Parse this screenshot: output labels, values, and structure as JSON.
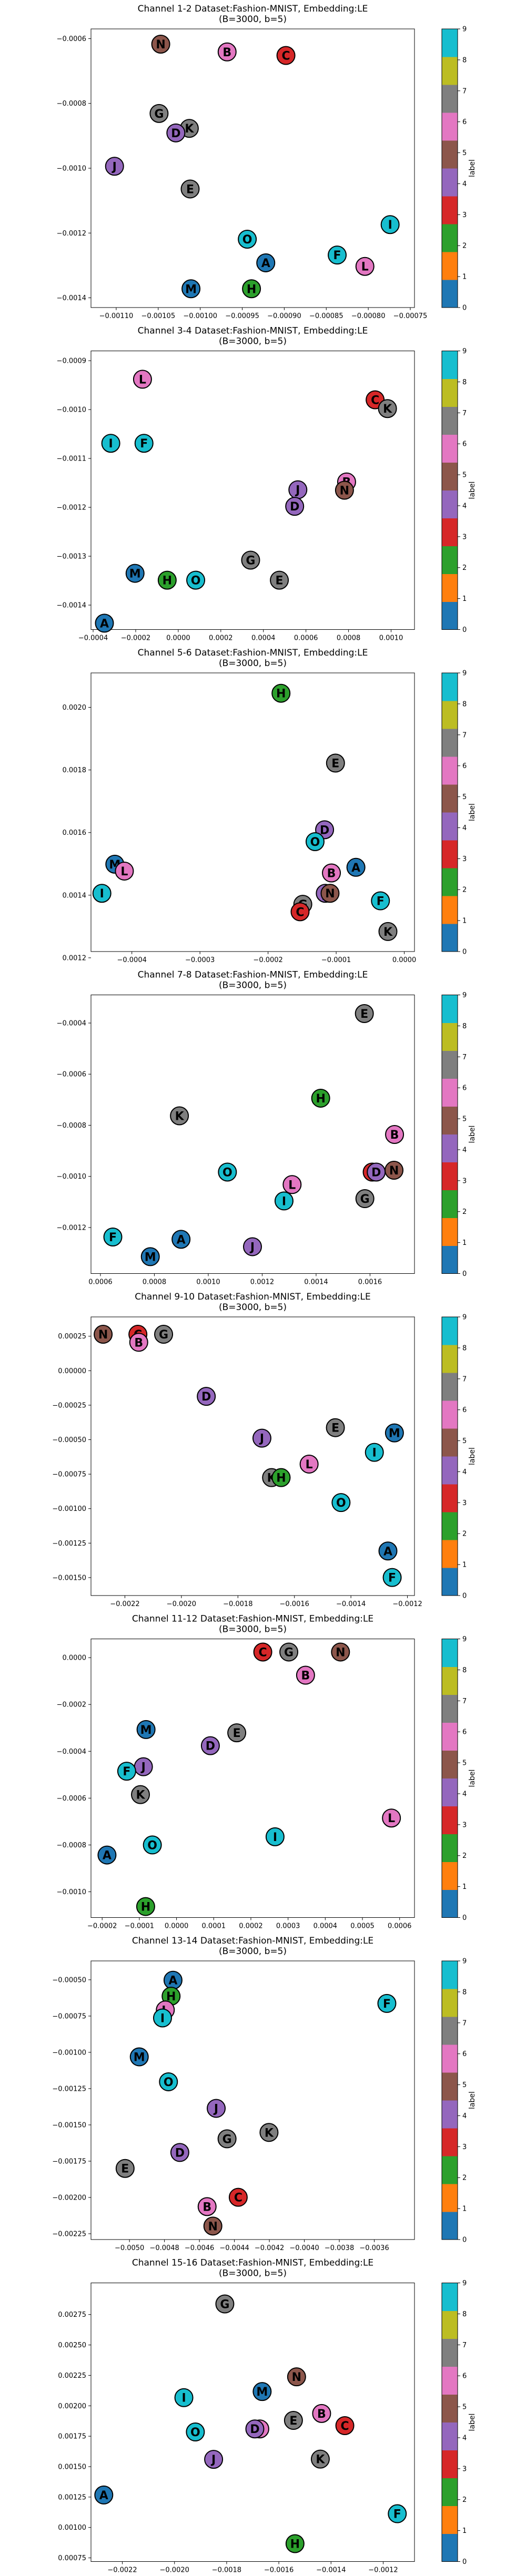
{
  "colorbar": {
    "label": "label",
    "ticks": [
      "0",
      "1",
      "2",
      "3",
      "4",
      "5",
      "6",
      "7",
      "8",
      "9"
    ],
    "colors": [
      "#1f77b4",
      "#ff7f0e",
      "#2ca02c",
      "#d62728",
      "#9467bd",
      "#8c564b",
      "#e377c2",
      "#7f7f7f",
      "#bcbd22",
      "#17becf"
    ]
  },
  "letter_colors": {
    "A": "#1f77b4",
    "M": "#1f77b4",
    "F": "#17becf",
    "I": "#17becf",
    "O": "#17becf",
    "H": "#2ca02c",
    "C": "#d62728",
    "D": "#9467bd",
    "J": "#9467bd",
    "N": "#8c564b",
    "B": "#e377c2",
    "L": "#e377c2",
    "E": "#7f7f7f",
    "G": "#7f7f7f",
    "K": "#7f7f7f"
  },
  "chart_data": [
    {
      "type": "scatter",
      "title": [
        "Channel 1-2 Dataset:Fashion-MNIST, Embedding:LE",
        "(B=3000, b=5)"
      ],
      "xlim": [
        -0.00113,
        -0.000745
      ],
      "ylim": [
        -0.00143,
        -0.00057
      ],
      "xticks": [
        -0.0011,
        -0.00105,
        -0.001,
        -0.00095,
        -0.0009,
        -0.00085,
        -0.0008,
        -0.00075
      ],
      "xtick_labels": [
        "−0.00110",
        "−0.00105",
        "−0.00100",
        "−0.00095",
        "−0.00090",
        "−0.00085",
        "−0.00080",
        "−0.00075"
      ],
      "yticks": [
        -0.0014,
        -0.0012,
        -0.001,
        -0.0008,
        -0.0006
      ],
      "ytick_labels": [
        "−0.0014",
        "−0.0012",
        "−0.0010",
        "−0.0008",
        "−0.0006"
      ],
      "points": [
        {
          "label": "N",
          "x": -0.001047,
          "y": -0.000617
        },
        {
          "label": "B",
          "x": -0.000968,
          "y": -0.000641
        },
        {
          "label": "C",
          "x": -0.000898,
          "y": -0.000652
        },
        {
          "label": "G",
          "x": -0.001049,
          "y": -0.000831
        },
        {
          "label": "K",
          "x": -0.001013,
          "y": -0.000877
        },
        {
          "label": "D",
          "x": -0.001029,
          "y": -0.000891
        },
        {
          "label": "J",
          "x": -0.001102,
          "y": -0.000994
        },
        {
          "label": "E",
          "x": -0.001012,
          "y": -0.001064
        },
        {
          "label": "I",
          "x": -0.000774,
          "y": -0.001174
        },
        {
          "label": "O",
          "x": -0.000944,
          "y": -0.001219
        },
        {
          "label": "F",
          "x": -0.000837,
          "y": -0.001268
        },
        {
          "label": "A",
          "x": -0.000922,
          "y": -0.001292
        },
        {
          "label": "L",
          "x": -0.000804,
          "y": -0.001303
        },
        {
          "label": "M",
          "x": -0.001011,
          "y": -0.001372
        },
        {
          "label": "H",
          "x": -0.000939,
          "y": -0.001372
        }
      ]
    },
    {
      "type": "scatter",
      "title": [
        "Channel 3-4 Dataset:Fashion-MNIST, Embedding:LE",
        "(B=3000, b=5)"
      ],
      "xlim": [
        -0.00041,
        0.00111
      ],
      "ylim": [
        -0.00145,
        -0.00088
      ],
      "xticks": [
        -0.0004,
        -0.0002,
        0,
        0.0002,
        0.0004,
        0.0006,
        0.0008,
        0.001
      ],
      "xtick_labels": [
        "−0.0004",
        "−0.0002",
        "0.0000",
        "0.0002",
        "0.0004",
        "0.0006",
        "0.0008",
        "0.0010"
      ],
      "yticks": [
        -0.0014,
        -0.0013,
        -0.0012,
        -0.0011,
        -0.001,
        -0.0009
      ],
      "ytick_labels": [
        "−0.0014",
        "−0.0013",
        "−0.0012",
        "−0.0011",
        "−0.0010",
        "−0.0009"
      ],
      "points": [
        {
          "label": "L",
          "x": -0.000168,
          "y": -0.000938
        },
        {
          "label": "C",
          "x": 0.000925,
          "y": -0.00098
        },
        {
          "label": "K",
          "x": 0.000983,
          "y": -0.000998
        },
        {
          "label": "I",
          "x": -0.000317,
          "y": -0.001069
        },
        {
          "label": "F",
          "x": -0.000161,
          "y": -0.001069
        },
        {
          "label": "B",
          "x": 0.000791,
          "y": -0.001148
        },
        {
          "label": "J",
          "x": 0.000562,
          "y": -0.001164
        },
        {
          "label": "N",
          "x": 0.000781,
          "y": -0.001165
        },
        {
          "label": "D",
          "x": 0.000547,
          "y": -0.001198
        },
        {
          "label": "G",
          "x": 0.00034,
          "y": -0.001308
        },
        {
          "label": "M",
          "x": -0.000203,
          "y": -0.001335
        },
        {
          "label": "H",
          "x": -5.2e-05,
          "y": -0.001349
        },
        {
          "label": "O",
          "x": 8.2e-05,
          "y": -0.001349
        },
        {
          "label": "E",
          "x": 0.000475,
          "y": -0.001349
        },
        {
          "label": "A",
          "x": -0.000347,
          "y": -0.001437
        }
      ]
    },
    {
      "type": "scatter",
      "title": [
        "Channel 5-6 Dataset:Fashion-MNIST, Embedding:LE",
        "(B=3000, b=5)"
      ],
      "xlim": [
        -0.00046,
        1.5e-05
      ],
      "ylim": [
        0.00122,
        0.00211
      ],
      "xticks": [
        -0.0004,
        -0.0003,
        -0.0002,
        -0.0001,
        0
      ],
      "xtick_labels": [
        "−0.0004",
        "−0.0003",
        "−0.0002",
        "−0.0001",
        "0.0000"
      ],
      "yticks": [
        0.0012,
        0.0014,
        0.0016,
        0.0018,
        0.002
      ],
      "ytick_labels": [
        "0.0012",
        "0.0014",
        "0.0016",
        "0.0018",
        "0.0020"
      ],
      "points": [
        {
          "label": "H",
          "x": -0.000181,
          "y": 0.002045
        },
        {
          "label": "E",
          "x": -0.000101,
          "y": 0.001822
        },
        {
          "label": "D",
          "x": -0.000117,
          "y": 0.001609
        },
        {
          "label": "O",
          "x": -0.000131,
          "y": 0.001571
        },
        {
          "label": "M",
          "x": -0.000425,
          "y": 0.001499
        },
        {
          "label": "L",
          "x": -0.000411,
          "y": 0.001477
        },
        {
          "label": "A",
          "x": -7.1e-05,
          "y": 0.001489
        },
        {
          "label": "B",
          "x": -0.000107,
          "y": 0.001471
        },
        {
          "label": "I",
          "x": -0.000444,
          "y": 0.001406
        },
        {
          "label": "J",
          "x": -0.000116,
          "y": 0.001406
        },
        {
          "label": "N",
          "x": -0.000109,
          "y": 0.001406
        },
        {
          "label": "F",
          "x": -3.5e-05,
          "y": 0.001382
        },
        {
          "label": "G",
          "x": -0.000149,
          "y": 0.001371
        },
        {
          "label": "C",
          "x": -0.000153,
          "y": 0.001347
        },
        {
          "label": "K",
          "x": -2.4e-05,
          "y": 0.001284
        }
      ]
    },
    {
      "type": "scatter",
      "title": [
        "Channel 7-8 Dataset:Fashion-MNIST, Embedding:LE",
        "(B=3000, b=5)"
      ],
      "xlim": [
        0.000565,
        0.001765
      ],
      "ylim": [
        -0.00138,
        -0.00029
      ],
      "xticks": [
        0.0006,
        0.0008,
        0.001,
        0.0012,
        0.0014,
        0.0016
      ],
      "xtick_labels": [
        "0.0006",
        "0.0008",
        "0.0010",
        "0.0012",
        "0.0014",
        "0.0016"
      ],
      "yticks": [
        -0.0012,
        -0.001,
        -0.0008,
        -0.0006,
        -0.0004
      ],
      "ytick_labels": [
        "−0.0012",
        "−0.0010",
        "−0.0008",
        "−0.0006",
        "−0.0004"
      ],
      "points": [
        {
          "label": "E",
          "x": 0.001579,
          "y": -0.000363
        },
        {
          "label": "H",
          "x": 0.001417,
          "y": -0.000694
        },
        {
          "label": "K",
          "x": 0.000893,
          "y": -0.000763
        },
        {
          "label": "B",
          "x": 0.001691,
          "y": -0.000836
        },
        {
          "label": "O",
          "x": 0.001071,
          "y": -0.000983
        },
        {
          "label": "C",
          "x": 0.001608,
          "y": -0.000983
        },
        {
          "label": "D",
          "x": 0.001623,
          "y": -0.000983
        },
        {
          "label": "N",
          "x": 0.001689,
          "y": -0.000976
        },
        {
          "label": "L",
          "x": 0.001311,
          "y": -0.001032
        },
        {
          "label": "I",
          "x": 0.001281,
          "y": -0.001096
        },
        {
          "label": "G",
          "x": 0.001581,
          "y": -0.001087
        },
        {
          "label": "F",
          "x": 0.000646,
          "y": -0.001237
        },
        {
          "label": "A",
          "x": 0.000899,
          "y": -0.001246
        },
        {
          "label": "J",
          "x": 0.001164,
          "y": -0.001275
        },
        {
          "label": "M",
          "x": 0.000785,
          "y": -0.001314
        }
      ]
    },
    {
      "type": "scatter",
      "title": [
        "Channel 9-10 Dataset:Fashion-MNIST, Embedding:LE",
        "(B=3000, b=5)"
      ],
      "xlim": [
        -0.00232,
        -0.001175
      ],
      "ylim": [
        -0.00163,
        0.00039
      ],
      "xticks": [
        -0.0022,
        -0.002,
        -0.0018,
        -0.0016,
        -0.0014,
        -0.0012
      ],
      "xtick_labels": [
        "−0.0022",
        "−0.0020",
        "−0.0018",
        "−0.0016",
        "−0.0014",
        "−0.0012"
      ],
      "yticks": [
        -0.0015,
        -0.00125,
        -0.001,
        -0.00075,
        -0.0005,
        -0.00025,
        0,
        0.00025
      ],
      "ytick_labels": [
        "−0.00150",
        "−0.00125",
        "−0.00100",
        "−0.00075",
        "−0.00050",
        "−0.00025",
        "0.00000",
        "0.00025"
      ],
      "points": [
        {
          "label": "N",
          "x": -0.002277,
          "y": 0.000264
        },
        {
          "label": "C",
          "x": -0.002154,
          "y": 0.000264
        },
        {
          "label": "B",
          "x": -0.002151,
          "y": 0.000206
        },
        {
          "label": "G",
          "x": -0.002063,
          "y": 0.000264
        },
        {
          "label": "D",
          "x": -0.001912,
          "y": -0.000186
        },
        {
          "label": "E",
          "x": -0.001455,
          "y": -0.000413
        },
        {
          "label": "M",
          "x": -0.001246,
          "y": -0.000451
        },
        {
          "label": "J",
          "x": -0.001715,
          "y": -0.000489
        },
        {
          "label": "I",
          "x": -0.001317,
          "y": -0.000592
        },
        {
          "label": "L",
          "x": -0.001548,
          "y": -0.000677
        },
        {
          "label": "K",
          "x": -0.001681,
          "y": -0.000775
        },
        {
          "label": "H",
          "x": -0.001647,
          "y": -0.000775
        },
        {
          "label": "O",
          "x": -0.001435,
          "y": -0.000956
        },
        {
          "label": "A",
          "x": -0.001269,
          "y": -0.001307
        },
        {
          "label": "F",
          "x": -0.001254,
          "y": -0.001499
        }
      ]
    },
    {
      "type": "scatter",
      "title": [
        "Channel 11-12 Dataset:Fashion-MNIST, Embedding:LE",
        "(B=3000, b=5)"
      ],
      "xlim": [
        -0.00023,
        0.00064
      ],
      "ylim": [
        -0.00111,
        8e-05
      ],
      "xticks": [
        -0.0002,
        -0.0001,
        0,
        0.0001,
        0.0002,
        0.0003,
        0.0004,
        0.0005,
        0.0006
      ],
      "xtick_labels": [
        "−0.0002",
        "−0.0001",
        "0.0000",
        "0.0001",
        "0.0002",
        "0.0003",
        "0.0004",
        "0.0005",
        "0.0006"
      ],
      "yticks": [
        -0.001,
        -0.0008,
        -0.0006,
        -0.0004,
        -0.0002,
        0
      ],
      "ytick_labels": [
        "−0.0010",
        "−0.0008",
        "−0.0006",
        "−0.0004",
        "−0.0002",
        "0.0000"
      ],
      "points": [
        {
          "label": "C",
          "x": 0.000232,
          "y": 2.4e-05
        },
        {
          "label": "G",
          "x": 0.000302,
          "y": 2.4e-05
        },
        {
          "label": "N",
          "x": 0.000441,
          "y": 2.4e-05
        },
        {
          "label": "B",
          "x": 0.000347,
          "y": -7.5e-05
        },
        {
          "label": "M",
          "x": -8.2e-05,
          "y": -0.000307
        },
        {
          "label": "E",
          "x": 0.000162,
          "y": -0.000321
        },
        {
          "label": "D",
          "x": 9.1e-05,
          "y": -0.000376
        },
        {
          "label": "J",
          "x": -8.9e-05,
          "y": -0.000466
        },
        {
          "label": "F",
          "x": -0.000134,
          "y": -0.000485
        },
        {
          "label": "K",
          "x": -9.7e-05,
          "y": -0.000585
        },
        {
          "label": "L",
          "x": 0.000578,
          "y": -0.000685
        },
        {
          "label": "I",
          "x": 0.000265,
          "y": -0.000765
        },
        {
          "label": "O",
          "x": -6.5e-05,
          "y": -0.0008
        },
        {
          "label": "A",
          "x": -0.000187,
          "y": -0.000843
        },
        {
          "label": "H",
          "x": -8.3e-05,
          "y": -0.001063
        }
      ]
    },
    {
      "type": "scatter",
      "title": [
        "Channel 13-14 Dataset:Fashion-MNIST, Embedding:LE",
        "(B=3000, b=5)"
      ],
      "xlim": [
        -0.00522,
        -0.00337
      ],
      "ylim": [
        -0.00229,
        -0.00037
      ],
      "xticks": [
        -0.005,
        -0.0048,
        -0.0046,
        -0.0044,
        -0.0042,
        -0.004,
        -0.0038,
        -0.0036
      ],
      "xtick_labels": [
        "−0.0050",
        "−0.0048",
        "−0.0046",
        "−0.0044",
        "−0.0042",
        "−0.0040",
        "−0.0038",
        "−0.0036"
      ],
      "yticks": [
        -0.00225,
        -0.002,
        -0.00175,
        -0.0015,
        -0.00125,
        -0.001,
        -0.00075,
        -0.0005
      ],
      "ytick_labels": [
        "−0.00225",
        "−0.00200",
        "−0.00175",
        "−0.00150",
        "−0.00125",
        "−0.00100",
        "−0.00075",
        "−0.00050"
      ],
      "points": [
        {
          "label": "A",
          "x": -0.004751,
          "y": -0.000503
        },
        {
          "label": "H",
          "x": -0.004762,
          "y": -0.000613
        },
        {
          "label": "F",
          "x": -0.003528,
          "y": -0.000663
        },
        {
          "label": "L",
          "x": -0.004795,
          "y": -0.000708
        },
        {
          "label": "I",
          "x": -0.004811,
          "y": -0.000763
        },
        {
          "label": "M",
          "x": -0.004944,
          "y": -0.001031
        },
        {
          "label": "O",
          "x": -0.004777,
          "y": -0.001203
        },
        {
          "label": "J",
          "x": -0.004504,
          "y": -0.001386
        },
        {
          "label": "K",
          "x": -0.004202,
          "y": -0.001552
        },
        {
          "label": "G",
          "x": -0.004442,
          "y": -0.001596
        },
        {
          "label": "D",
          "x": -0.004712,
          "y": -0.00169
        },
        {
          "label": "E",
          "x": -0.005025,
          "y": -0.0018
        },
        {
          "label": "C",
          "x": -0.004378,
          "y": -0.001999
        },
        {
          "label": "B",
          "x": -0.004556,
          "y": -0.002063
        },
        {
          "label": "N",
          "x": -0.004523,
          "y": -0.002197
        }
      ]
    },
    {
      "type": "scatter",
      "title": [
        "Channel 15-16 Dataset:Fashion-MNIST, Embedding:LE",
        "(B=3000, b=5)"
      ],
      "xlim": [
        -0.00232,
        -0.00108
      ],
      "ylim": [
        0.00072,
        0.00301
      ],
      "xticks": [
        -0.0022,
        -0.002,
        -0.0018,
        -0.0016,
        -0.0014,
        -0.0012
      ],
      "xtick_labels": [
        "−0.0022",
        "−0.0020",
        "−0.0018",
        "−0.0016",
        "−0.0014",
        "−0.0012"
      ],
      "yticks": [
        0.00075,
        0.001,
        0.00125,
        0.0015,
        0.00175,
        0.002,
        0.00225,
        0.0025,
        0.00275
      ],
      "ytick_labels": [
        "0.00075",
        "0.00100",
        "0.00125",
        "0.00150",
        "0.00175",
        "0.00200",
        "0.00225",
        "0.00250",
        "0.00275"
      ],
      "points": [
        {
          "label": "G",
          "x": -0.001807,
          "y": 0.002837
        },
        {
          "label": "N",
          "x": -0.001532,
          "y": 0.002238
        },
        {
          "label": "M",
          "x": -0.001664,
          "y": 0.002117
        },
        {
          "label": "I",
          "x": -0.001964,
          "y": 0.002067
        },
        {
          "label": "B",
          "x": -0.001436,
          "y": 0.001937
        },
        {
          "label": "C",
          "x": -0.001347,
          "y": 0.001837
        },
        {
          "label": "E",
          "x": -0.001544,
          "y": 0.00188
        },
        {
          "label": "L",
          "x": -0.001673,
          "y": 0.00181
        },
        {
          "label": "D",
          "x": -0.001692,
          "y": 0.00181
        },
        {
          "label": "O",
          "x": -0.00192,
          "y": 0.001785
        },
        {
          "label": "J",
          "x": -0.00185,
          "y": 0.00156
        },
        {
          "label": "K",
          "x": -0.001441,
          "y": 0.001562
        },
        {
          "label": "A",
          "x": -0.002271,
          "y": 0.001267
        },
        {
          "label": "F",
          "x": -0.001146,
          "y": 0.001113
        },
        {
          "label": "H",
          "x": -0.001538,
          "y": 0.000867
        }
      ]
    }
  ]
}
